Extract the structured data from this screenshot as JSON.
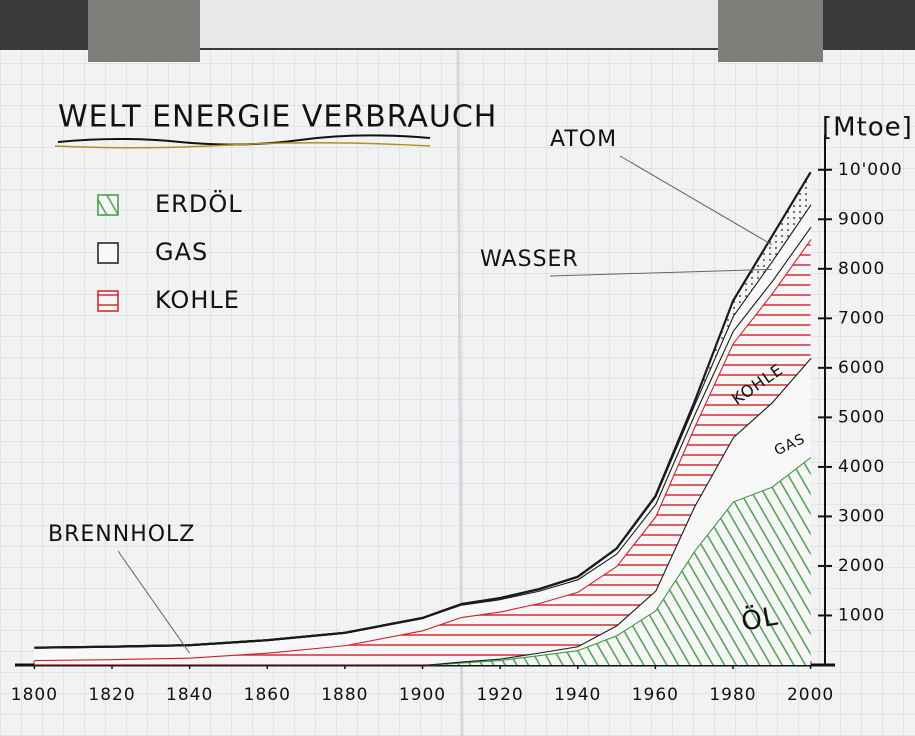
{
  "chart_data": {
    "type": "stacked-area",
    "title": "WELT ENERGIE VERBRAUCH",
    "y_label": "[Mtoe]",
    "x": [
      1800,
      1820,
      1840,
      1860,
      1880,
      1900,
      1910,
      1920,
      1930,
      1940,
      1950,
      1960,
      1970,
      1980,
      1990,
      2000
    ],
    "series": [
      {
        "name": "ERDÖL",
        "area_label": "ÖL",
        "color": "#3f9a45",
        "fill": "hatch",
        "legend": true,
        "values": [
          0,
          0,
          0,
          0,
          0,
          0,
          50,
          100,
          200,
          300,
          600,
          1100,
          2300,
          3300,
          3600,
          4200
        ]
      },
      {
        "name": "GAS",
        "area_label": "GAS",
        "color": "#1a1a1a",
        "fill": "plain",
        "legend": true,
        "values": [
          0,
          0,
          0,
          0,
          0,
          0,
          20,
          30,
          50,
          80,
          200,
          400,
          900,
          1300,
          1700,
          2000
        ]
      },
      {
        "name": "KOHLE",
        "area_label": "KOHLE",
        "color": "#d0202a",
        "fill": "hatch",
        "legend": true,
        "values": [
          100,
          120,
          150,
          250,
          400,
          700,
          900,
          950,
          1000,
          1100,
          1200,
          1500,
          1600,
          1900,
          2200,
          2400
        ]
      },
      {
        "name": "BRENNHOLZ",
        "color": "#1a1a1a",
        "fill": "plain",
        "legend": false,
        "values": [
          250,
          250,
          250,
          250,
          250,
          250,
          250,
          250,
          250,
          250,
          250,
          250,
          250,
          250,
          250,
          250
        ]
      },
      {
        "name": "WASSER",
        "color": "#1a1a1a",
        "fill": "plain",
        "legend": false,
        "values": [
          0,
          0,
          0,
          0,
          0,
          0,
          10,
          20,
          30,
          50,
          100,
          150,
          200,
          300,
          400,
          450
        ]
      },
      {
        "name": "ATOM",
        "color": "#1a1a1a",
        "fill": "dots",
        "legend": false,
        "values": [
          0,
          0,
          0,
          0,
          0,
          0,
          0,
          0,
          0,
          0,
          0,
          10,
          50,
          300,
          500,
          650
        ]
      }
    ],
    "xlim": [
      1795,
      2005
    ],
    "xticks": [
      1800,
      1820,
      1840,
      1860,
      1880,
      1900,
      1920,
      1940,
      1960,
      1980,
      2000
    ],
    "ylim": [
      0,
      10500
    ],
    "yticks": [
      1000,
      2000,
      3000,
      4000,
      5000,
      6000,
      7000,
      8000,
      9000,
      {
        "value": 10000,
        "label": "10'000"
      }
    ],
    "grid": true
  }
}
